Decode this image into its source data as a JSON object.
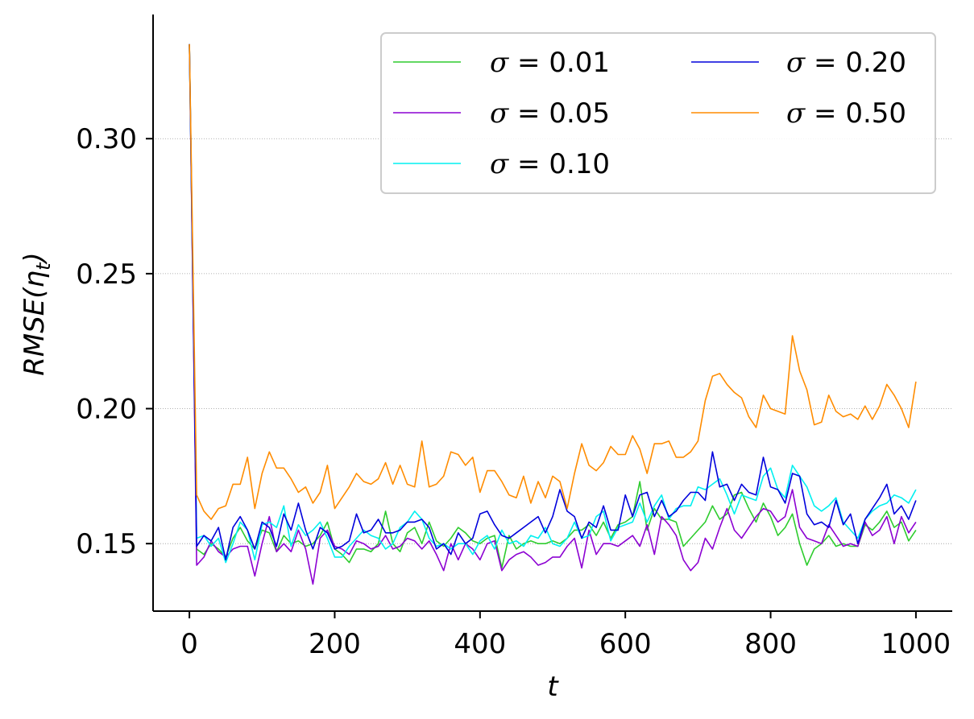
{
  "chart_data": {
    "type": "line",
    "xlabel": "t",
    "ylabel": "RMSE(η_t)",
    "ylabel_main": "RMSE(η",
    "ylabel_sub": "t",
    "ylabel_close": ")",
    "xlim": [
      -50,
      1050
    ],
    "ylim": [
      0.125,
      0.346
    ],
    "xticks": [
      0,
      200,
      400,
      600,
      800,
      1000
    ],
    "xtick_labels": [
      "0",
      "200",
      "400",
      "600",
      "800",
      "1000"
    ],
    "yticks": [
      0.15,
      0.2,
      0.25,
      0.3
    ],
    "ytick_labels": [
      "0.15",
      "0.20",
      "0.25",
      "0.30"
    ],
    "grid": "horizontal dotted",
    "legend_position": "top-right",
    "legend_columns": 2,
    "x": [
      0,
      10,
      20,
      30,
      40,
      50,
      60,
      70,
      80,
      90,
      100,
      110,
      120,
      130,
      140,
      150,
      160,
      170,
      180,
      190,
      200,
      210,
      220,
      230,
      240,
      250,
      260,
      270,
      280,
      290,
      300,
      310,
      320,
      330,
      340,
      350,
      360,
      370,
      380,
      390,
      400,
      410,
      420,
      430,
      440,
      450,
      460,
      470,
      480,
      490,
      500,
      510,
      520,
      530,
      540,
      550,
      560,
      570,
      580,
      590,
      600,
      610,
      620,
      630,
      640,
      650,
      660,
      670,
      680,
      690,
      700,
      710,
      720,
      730,
      740,
      750,
      760,
      770,
      780,
      790,
      800,
      810,
      820,
      830,
      840,
      850,
      860,
      870,
      880,
      890,
      900,
      910,
      920,
      930,
      940,
      950,
      960,
      970,
      980,
      990,
      1000
    ],
    "series": [
      {
        "name": "σ = 0.01",
        "sigma": "σ",
        "value_label": "0.01",
        "color": "#2ecc2e",
        "values": [
          0.335,
          0.148,
          0.146,
          0.15,
          0.148,
          0.145,
          0.152,
          0.156,
          0.151,
          0.148,
          0.155,
          0.154,
          0.147,
          0.153,
          0.15,
          0.151,
          0.149,
          0.15,
          0.153,
          0.158,
          0.148,
          0.146,
          0.143,
          0.148,
          0.148,
          0.147,
          0.15,
          0.162,
          0.15,
          0.147,
          0.154,
          0.156,
          0.15,
          0.158,
          0.151,
          0.149,
          0.152,
          0.156,
          0.154,
          0.151,
          0.15,
          0.152,
          0.153,
          0.141,
          0.153,
          0.148,
          0.15,
          0.151,
          0.15,
          0.15,
          0.151,
          0.15,
          0.152,
          0.155,
          0.155,
          0.157,
          0.153,
          0.158,
          0.152,
          0.157,
          0.158,
          0.16,
          0.173,
          0.155,
          0.163,
          0.159,
          0.159,
          0.158,
          0.149,
          0.152,
          0.155,
          0.158,
          0.164,
          0.159,
          0.161,
          0.168,
          0.169,
          0.163,
          0.158,
          0.165,
          0.16,
          0.153,
          0.156,
          0.161,
          0.15,
          0.142,
          0.148,
          0.15,
          0.153,
          0.149,
          0.15,
          0.149,
          0.149,
          0.157,
          0.155,
          0.158,
          0.162,
          0.156,
          0.158,
          0.151,
          0.155
        ]
      },
      {
        "name": "σ = 0.05",
        "sigma": "σ",
        "value_label": "0.05",
        "color": "#8c00d2",
        "values": [
          0.335,
          0.142,
          0.145,
          0.151,
          0.147,
          0.145,
          0.148,
          0.149,
          0.149,
          0.138,
          0.15,
          0.16,
          0.147,
          0.15,
          0.147,
          0.155,
          0.148,
          0.135,
          0.152,
          0.155,
          0.149,
          0.148,
          0.146,
          0.151,
          0.15,
          0.148,
          0.149,
          0.153,
          0.148,
          0.149,
          0.152,
          0.151,
          0.148,
          0.151,
          0.146,
          0.14,
          0.15,
          0.144,
          0.15,
          0.148,
          0.144,
          0.15,
          0.151,
          0.14,
          0.144,
          0.146,
          0.147,
          0.145,
          0.142,
          0.143,
          0.145,
          0.145,
          0.149,
          0.152,
          0.141,
          0.155,
          0.146,
          0.15,
          0.15,
          0.149,
          0.151,
          0.153,
          0.149,
          0.157,
          0.146,
          0.16,
          0.157,
          0.153,
          0.144,
          0.14,
          0.143,
          0.152,
          0.148,
          0.156,
          0.163,
          0.155,
          0.152,
          0.156,
          0.16,
          0.163,
          0.162,
          0.158,
          0.16,
          0.17,
          0.156,
          0.152,
          0.151,
          0.15,
          0.157,
          0.153,
          0.149,
          0.15,
          0.149,
          0.158,
          0.153,
          0.155,
          0.16,
          0.15,
          0.16,
          0.154,
          0.158
        ]
      },
      {
        "name": "σ = 0.10",
        "sigma": "σ",
        "value_label": "0.10",
        "color": "#00f0f0",
        "values": [
          0.335,
          0.152,
          0.153,
          0.149,
          0.152,
          0.143,
          0.15,
          0.158,
          0.155,
          0.144,
          0.157,
          0.158,
          0.156,
          0.164,
          0.149,
          0.157,
          0.153,
          0.155,
          0.158,
          0.152,
          0.145,
          0.145,
          0.149,
          0.152,
          0.155,
          0.153,
          0.152,
          0.148,
          0.15,
          0.156,
          0.158,
          0.162,
          0.159,
          0.152,
          0.149,
          0.15,
          0.148,
          0.15,
          0.15,
          0.146,
          0.151,
          0.153,
          0.148,
          0.155,
          0.15,
          0.151,
          0.149,
          0.153,
          0.152,
          0.156,
          0.15,
          0.149,
          0.152,
          0.158,
          0.152,
          0.153,
          0.16,
          0.162,
          0.151,
          0.156,
          0.157,
          0.158,
          0.165,
          0.158,
          0.164,
          0.168,
          0.159,
          0.163,
          0.164,
          0.164,
          0.171,
          0.17,
          0.172,
          0.174,
          0.168,
          0.161,
          0.168,
          0.167,
          0.166,
          0.175,
          0.178,
          0.17,
          0.167,
          0.179,
          0.175,
          0.171,
          0.164,
          0.162,
          0.164,
          0.167,
          0.158,
          0.155,
          0.152,
          0.159,
          0.162,
          0.164,
          0.165,
          0.168,
          0.167,
          0.165,
          0.17
        ]
      },
      {
        "name": "σ = 0.20",
        "sigma": "σ",
        "value_label": "0.20",
        "color": "#0000dc",
        "values": [
          0.335,
          0.149,
          0.153,
          0.151,
          0.156,
          0.144,
          0.156,
          0.16,
          0.155,
          0.148,
          0.158,
          0.156,
          0.149,
          0.161,
          0.155,
          0.165,
          0.155,
          0.148,
          0.156,
          0.154,
          0.148,
          0.149,
          0.151,
          0.161,
          0.154,
          0.155,
          0.159,
          0.154,
          0.154,
          0.155,
          0.158,
          0.158,
          0.159,
          0.156,
          0.148,
          0.15,
          0.146,
          0.154,
          0.15,
          0.152,
          0.161,
          0.162,
          0.157,
          0.153,
          0.152,
          0.154,
          0.156,
          0.158,
          0.16,
          0.154,
          0.16,
          0.17,
          0.162,
          0.16,
          0.152,
          0.158,
          0.156,
          0.164,
          0.155,
          0.155,
          0.168,
          0.16,
          0.168,
          0.169,
          0.16,
          0.166,
          0.16,
          0.162,
          0.166,
          0.169,
          0.169,
          0.166,
          0.184,
          0.171,
          0.172,
          0.166,
          0.172,
          0.169,
          0.168,
          0.182,
          0.171,
          0.17,
          0.165,
          0.176,
          0.175,
          0.161,
          0.157,
          0.158,
          0.156,
          0.166,
          0.157,
          0.161,
          0.15,
          0.159,
          0.163,
          0.167,
          0.172,
          0.161,
          0.164,
          0.159,
          0.166
        ]
      },
      {
        "name": "σ = 0.50",
        "sigma": "σ",
        "value_label": "0.50",
        "color": "#ff8c00",
        "values": [
          0.335,
          0.168,
          0.162,
          0.159,
          0.163,
          0.164,
          0.172,
          0.172,
          0.182,
          0.163,
          0.176,
          0.184,
          0.178,
          0.178,
          0.174,
          0.169,
          0.171,
          0.165,
          0.169,
          0.179,
          0.163,
          0.167,
          0.171,
          0.176,
          0.173,
          0.172,
          0.174,
          0.18,
          0.172,
          0.179,
          0.172,
          0.171,
          0.188,
          0.171,
          0.172,
          0.175,
          0.184,
          0.183,
          0.179,
          0.182,
          0.169,
          0.177,
          0.177,
          0.173,
          0.168,
          0.167,
          0.175,
          0.165,
          0.173,
          0.167,
          0.175,
          0.173,
          0.163,
          0.176,
          0.187,
          0.179,
          0.177,
          0.18,
          0.186,
          0.183,
          0.183,
          0.19,
          0.185,
          0.176,
          0.187,
          0.187,
          0.188,
          0.182,
          0.182,
          0.184,
          0.188,
          0.203,
          0.212,
          0.213,
          0.209,
          0.206,
          0.204,
          0.197,
          0.193,
          0.205,
          0.2,
          0.199,
          0.198,
          0.227,
          0.214,
          0.207,
          0.194,
          0.195,
          0.205,
          0.199,
          0.197,
          0.198,
          0.196,
          0.201,
          0.196,
          0.201,
          0.209,
          0.205,
          0.2,
          0.193,
          0.21
        ]
      }
    ]
  }
}
